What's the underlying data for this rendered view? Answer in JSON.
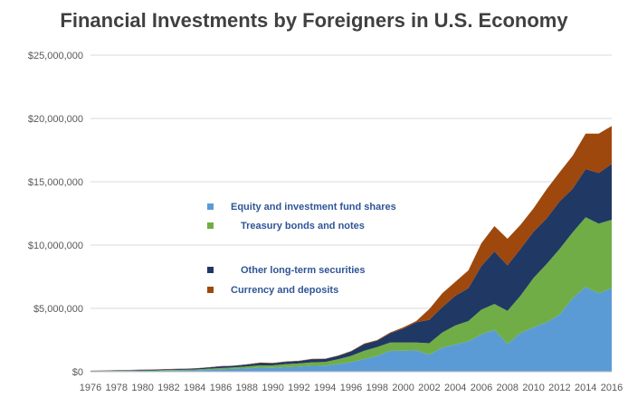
{
  "chart_data": {
    "type": "area",
    "stacked": true,
    "title": "Financial Investments by Foreigners in U.S. Economy",
    "xlabel": "",
    "ylabel": "",
    "x": [
      1976,
      1977,
      1978,
      1979,
      1980,
      1981,
      1982,
      1983,
      1984,
      1985,
      1986,
      1987,
      1988,
      1989,
      1990,
      1991,
      1992,
      1993,
      1994,
      1995,
      1996,
      1997,
      1998,
      1999,
      2000,
      2001,
      2002,
      2003,
      2004,
      2005,
      2006,
      2007,
      2008,
      2009,
      2010,
      2011,
      2012,
      2013,
      2014,
      2015,
      2016
    ],
    "x_ticks": [
      1976,
      1978,
      1980,
      1982,
      1984,
      1986,
      1988,
      1990,
      1992,
      1994,
      1996,
      1998,
      2000,
      2002,
      2004,
      2006,
      2008,
      2010,
      2012,
      2014,
      2016
    ],
    "ylim": [
      0,
      25000000
    ],
    "y_ticks": [
      {
        "value": 0,
        "label": "$0"
      },
      {
        "value": 5000000,
        "label": "$5,000,000"
      },
      {
        "value": 10000000,
        "label": "$10,000,000"
      },
      {
        "value": 15000000,
        "label": "$15,000,000"
      },
      {
        "value": 20000000,
        "label": "$20,000,000"
      },
      {
        "value": 25000000,
        "label": "$25,000,000"
      }
    ],
    "grid": "horizontal",
    "legend_position": "center-left",
    "series": [
      {
        "name": "Equity and investment fund shares",
        "color": "#5b9bd5",
        "values": [
          40000,
          45000,
          50000,
          60000,
          70000,
          75000,
          90000,
          100000,
          110000,
          150000,
          200000,
          230000,
          260000,
          320000,
          300000,
          370000,
          400000,
          460000,
          470000,
          600000,
          750000,
          1000000,
          1250000,
          1650000,
          1650000,
          1700000,
          1350000,
          1900000,
          2150000,
          2400000,
          2950000,
          3300000,
          2200000,
          3050000,
          3500000,
          3900000,
          4500000,
          5800000,
          6700000,
          6200000,
          6600000
        ]
      },
      {
        "name": "Treasury bonds and notes",
        "color": "#70ad47",
        "values": [
          10000,
          15000,
          20000,
          25000,
          30000,
          35000,
          40000,
          50000,
          60000,
          80000,
          90000,
          110000,
          150000,
          180000,
          200000,
          230000,
          250000,
          280000,
          300000,
          380000,
          500000,
          650000,
          700000,
          650000,
          650000,
          600000,
          900000,
          1200000,
          1500000,
          1600000,
          1950000,
          2050000,
          2600000,
          2950000,
          3900000,
          4600000,
          5200000,
          5200000,
          5500000,
          5500000,
          5400000
        ]
      },
      {
        "name": "Other long-term securities",
        "color": "#203864",
        "values": [
          20000,
          25000,
          35000,
          40000,
          50000,
          55000,
          60000,
          70000,
          80000,
          100000,
          130000,
          120000,
          150000,
          180000,
          170000,
          180000,
          190000,
          250000,
          230000,
          270000,
          350000,
          530000,
          500000,
          740000,
          1100000,
          1600000,
          1850000,
          2000000,
          2350000,
          2600000,
          3450000,
          4150000,
          3600000,
          3700000,
          3650000,
          3600000,
          3750000,
          3450000,
          3800000,
          4000000,
          4400000
        ]
      },
      {
        "name": "Currency and deposits",
        "color": "#9e480e",
        "values": [
          10000,
          10000,
          10000,
          15000,
          20000,
          20000,
          20000,
          20000,
          20000,
          20000,
          30000,
          20000,
          30000,
          40000,
          30000,
          30000,
          30000,
          30000,
          30000,
          30000,
          30000,
          40000,
          50000,
          60000,
          100000,
          100000,
          850000,
          1100000,
          1100000,
          1400000,
          1800000,
          2000000,
          2100000,
          1900000,
          1850000,
          2300000,
          2300000,
          2600000,
          2800000,
          3100000,
          3000000
        ]
      }
    ]
  }
}
